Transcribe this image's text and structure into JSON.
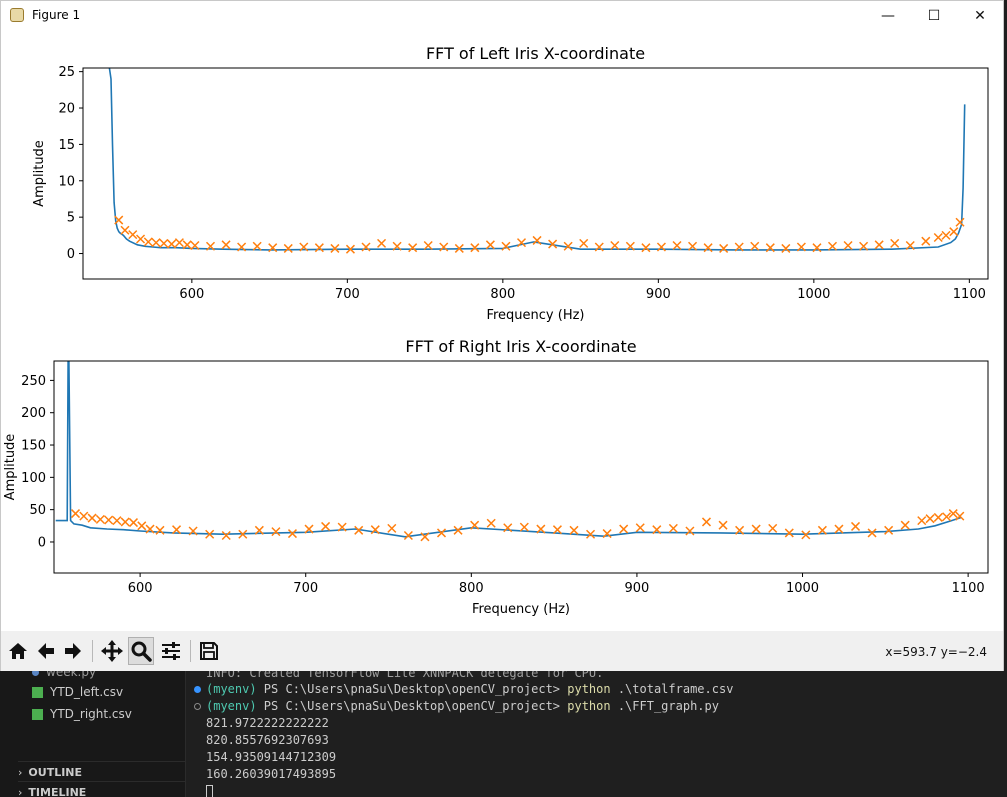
{
  "window": {
    "title": "Figure 1",
    "controls": {
      "minimize": "—",
      "maximize": "☐",
      "close": "✕"
    }
  },
  "chart_data": [
    {
      "type": "line",
      "title": "FFT of Left Iris X-coordinate",
      "xlabel": "Frequency (Hz)",
      "ylabel": "Amplitude",
      "xlim": [
        530,
        1112
      ],
      "ylim": [
        -3.5,
        25.5
      ],
      "xticks": [
        600,
        700,
        800,
        900,
        1000,
        1100
      ],
      "yticks": [
        0,
        5,
        10,
        15,
        20,
        25
      ],
      "grid": false,
      "legend": "none",
      "series": [
        {
          "color": "#1f77b4",
          "x": [
            547,
            548,
            549,
            550,
            551,
            552,
            553,
            554,
            556,
            558,
            560,
            565,
            570,
            575,
            580,
            590,
            600,
            620,
            650,
            700,
            750,
            800,
            820,
            850,
            900,
            950,
            1000,
            1050,
            1080,
            1088,
            1091,
            1093,
            1095,
            1096,
            1097
          ],
          "y": [
            25.5,
            24,
            15,
            7,
            4.5,
            3.5,
            3,
            2.8,
            2.5,
            2,
            1.7,
            1.2,
            1,
            0.9,
            0.8,
            0.8,
            0.7,
            0.6,
            0.5,
            0.6,
            0.6,
            0.7,
            1.6,
            0.6,
            0.6,
            0.5,
            0.5,
            0.6,
            0.9,
            1.5,
            2,
            2.8,
            4,
            9,
            20.5
          ]
        },
        {
          "color": "#ff7f0e",
          "marker": "x",
          "x": [
            553,
            557,
            562,
            567,
            572,
            577,
            582,
            587,
            592,
            597,
            602,
            612,
            622,
            632,
            642,
            652,
            662,
            672,
            682,
            692,
            702,
            712,
            722,
            732,
            742,
            752,
            762,
            772,
            782,
            792,
            802,
            812,
            822,
            832,
            842,
            852,
            862,
            872,
            882,
            892,
            902,
            912,
            922,
            932,
            942,
            952,
            962,
            972,
            982,
            992,
            1002,
            1012,
            1022,
            1032,
            1042,
            1052,
            1062,
            1072,
            1080,
            1085,
            1090,
            1094
          ],
          "y": [
            4.6,
            3.2,
            2.6,
            2.0,
            1.6,
            1.5,
            1.4,
            1.3,
            1.5,
            1.2,
            1.1,
            1.0,
            1.2,
            0.9,
            1.0,
            0.8,
            0.7,
            0.9,
            0.8,
            0.7,
            0.6,
            0.9,
            1.4,
            1.0,
            0.8,
            1.1,
            0.9,
            0.7,
            0.8,
            1.2,
            1.0,
            1.5,
            1.8,
            1.3,
            1.0,
            1.4,
            0.9,
            1.1,
            1.0,
            0.8,
            0.9,
            1.1,
            1.0,
            0.8,
            0.7,
            0.9,
            1.0,
            0.8,
            0.7,
            0.9,
            0.8,
            1.0,
            1.1,
            1.0,
            1.2,
            1.4,
            1.1,
            1.7,
            2.2,
            2.5,
            3.0,
            4.3
          ]
        }
      ]
    },
    {
      "type": "line",
      "title": "FFT of Right Iris X-coordinate",
      "xlabel": "Frequency (Hz)",
      "ylabel": "Amplitude",
      "xlim": [
        548,
        1112
      ],
      "ylim": [
        -48,
        280
      ],
      "xticks": [
        600,
        700,
        800,
        900,
        1000,
        1100
      ],
      "yticks": [
        0,
        50,
        100,
        150,
        200,
        250
      ],
      "grid": false,
      "legend": "none",
      "series": [
        {
          "color": "#1f77b4",
          "x": [
            549,
            552,
            555,
            556,
            556.5,
            557,
            558,
            560,
            565,
            570,
            580,
            590,
            600,
            620,
            650,
            700,
            730,
            760,
            800,
            850,
            880,
            900,
            950,
            1000,
            1050,
            1070,
            1080,
            1090,
            1096
          ],
          "y": [
            33,
            33,
            33,
            33,
            280,
            280,
            33,
            28,
            26,
            22,
            20,
            19,
            17,
            14,
            12,
            15,
            20,
            8,
            22,
            14,
            9,
            15,
            14,
            12,
            16,
            20,
            25,
            33,
            38
          ]
        },
        {
          "color": "#ff7f0e",
          "marker": "x",
          "x": [
            561,
            566,
            571,
            576,
            581,
            586,
            591,
            596,
            601,
            606,
            612,
            622,
            632,
            642,
            652,
            662,
            672,
            682,
            692,
            702,
            712,
            722,
            732,
            742,
            752,
            762,
            772,
            782,
            792,
            802,
            812,
            822,
            832,
            842,
            852,
            862,
            872,
            882,
            892,
            902,
            912,
            922,
            932,
            942,
            952,
            962,
            972,
            982,
            992,
            1002,
            1012,
            1022,
            1032,
            1042,
            1052,
            1062,
            1072,
            1077,
            1082,
            1087,
            1091,
            1095
          ],
          "y": [
            44,
            40,
            37,
            35,
            34,
            33,
            31,
            30,
            25,
            20,
            18,
            19,
            17,
            12,
            10,
            12,
            18,
            16,
            13,
            20,
            24,
            23,
            18,
            19,
            21,
            10,
            8,
            14,
            18,
            26,
            29,
            22,
            23,
            20,
            19,
            18,
            12,
            13,
            20,
            22,
            19,
            21,
            17,
            31,
            26,
            18,
            20,
            21,
            14,
            11,
            18,
            20,
            24,
            14,
            18,
            26,
            33,
            36,
            38,
            39,
            44,
            40
          ]
        }
      ]
    }
  ],
  "toolbar": {
    "coords": "x=593.7 y=−2.4",
    "buttons": [
      {
        "name": "home-button",
        "icon": "home-icon"
      },
      {
        "name": "back-button",
        "icon": "arrow-left-icon"
      },
      {
        "name": "forward-button",
        "icon": "arrow-right-icon"
      },
      {
        "name": "pan-button",
        "icon": "move-icon"
      },
      {
        "name": "zoom-button",
        "icon": "magnifier-icon",
        "active": true
      },
      {
        "name": "configure-subplots-button",
        "icon": "sliders-icon"
      },
      {
        "name": "save-button",
        "icon": "floppy-icon"
      }
    ]
  },
  "explorer": {
    "files": [
      {
        "label": "week.py"
      },
      {
        "label": "YTD_left.csv"
      },
      {
        "label": "YTD_right.csv"
      }
    ],
    "sections": [
      {
        "label": "OUTLINE"
      },
      {
        "label": "TIMELINE"
      }
    ]
  },
  "terminal": {
    "info_line": "INFO: Created TensorFlow Lite XNNPACK delegate for CPU.",
    "env": "(myenv)",
    "prompt": " PS C:\\Users\\pnaSu\\Desktop\\openCV_project> ",
    "cmd_word": "python",
    "cmd1_arg": " .\\totalframe.csv",
    "cmd2_arg": " .\\FFT_graph.py",
    "outputs": [
      "821.9722222222222",
      "820.8557692307693",
      "154.93509144712309",
      "160.26039017493895"
    ]
  },
  "colors": {
    "accent": "#1f77b4",
    "marker": "#ff7f0e",
    "env": "#4ec9b0",
    "command": "#dcdcaa"
  }
}
